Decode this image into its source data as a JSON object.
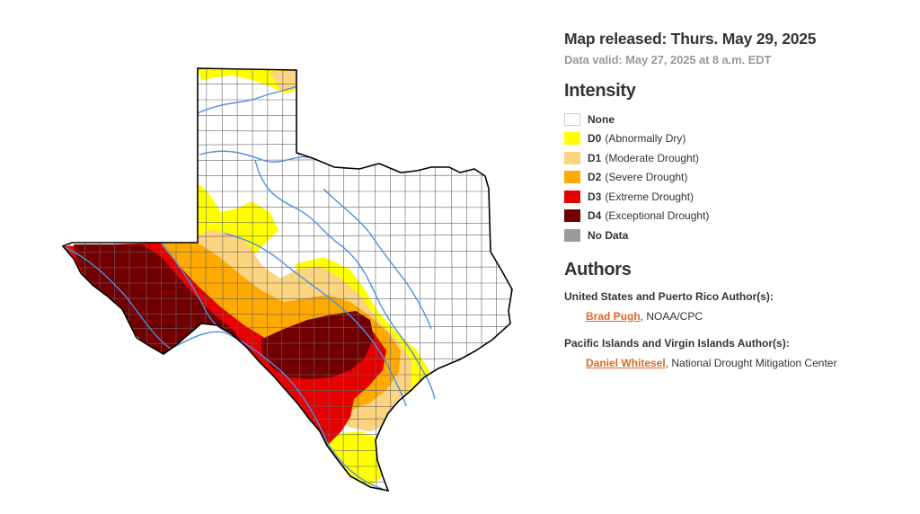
{
  "header": {
    "released": "Map released: Thurs. May 29, 2025",
    "valid": "Data valid: May 27, 2025 at 8 a.m. EDT"
  },
  "intensity": {
    "title": "Intensity",
    "items": [
      {
        "code": "None",
        "desc": "",
        "color": "#ffffff"
      },
      {
        "code": "D0",
        "desc": "(Abnormally Dry)",
        "color": "#ffff00"
      },
      {
        "code": "D1",
        "desc": "(Moderate Drought)",
        "color": "#fcd37f"
      },
      {
        "code": "D2",
        "desc": "(Severe Drought)",
        "color": "#ffaa00"
      },
      {
        "code": "D3",
        "desc": "(Extreme Drought)",
        "color": "#e60000"
      },
      {
        "code": "D4",
        "desc": "(Exceptional Drought)",
        "color": "#730000"
      },
      {
        "code": "No Data",
        "desc": "",
        "color": "#9b9b9b"
      }
    ]
  },
  "authors": {
    "title": "Authors",
    "us_heading": "United States and Puerto Rico Author(s):",
    "us_author_name": "Brad Pugh",
    "us_author_org": ", NOAA/CPC",
    "pi_heading": "Pacific Islands and Virgin Islands Author(s):",
    "pi_author_name": "Daniel Whitesel",
    "pi_author_org": ", National Drought Mitigation Center"
  },
  "map": {
    "region": "Texas",
    "colors": {
      "D0": "#ffff00",
      "D1": "#fcd37f",
      "D2": "#ffaa00",
      "D3": "#e60000",
      "D4": "#730000",
      "rivers": "#4a90e2",
      "outline": "#000000",
      "counties": "#666666"
    }
  }
}
